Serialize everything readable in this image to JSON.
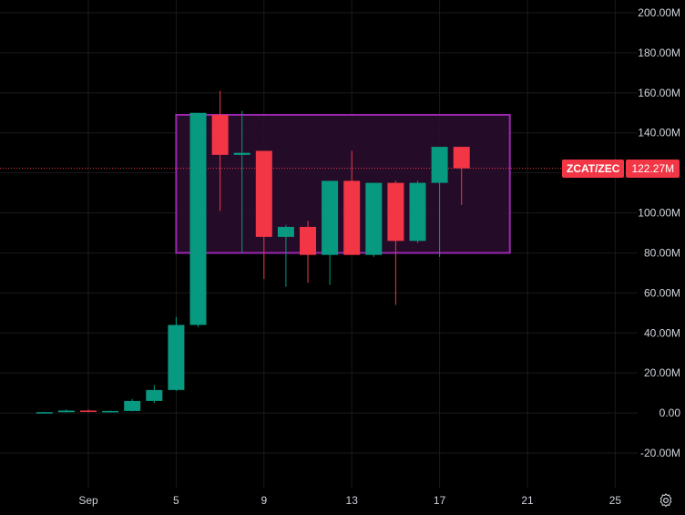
{
  "chart_data": {
    "type": "candlestick",
    "symbol": "ZCAT/ZEC",
    "last_price_label": "122.27M",
    "last_price": 122.27,
    "unit": "M",
    "ylim": [
      -28,
      204
    ],
    "y_ticks": [
      -20,
      0,
      20,
      40,
      60,
      80,
      100,
      120,
      140,
      160,
      180,
      200
    ],
    "y_tick_labels": [
      "-20.00M",
      "0.00",
      "20.00M",
      "40.00M",
      "60.00M",
      "80.00M",
      "100.00M",
      "120.00M",
      "140.00M",
      "160.00M",
      "180.00M",
      "200.00M"
    ],
    "x_ticks": [
      {
        "day": 1,
        "label": "Sep"
      },
      {
        "day": 5,
        "label": "5"
      },
      {
        "day": 9,
        "label": "9"
      },
      {
        "day": 13,
        "label": "13"
      },
      {
        "day": 17,
        "label": "17"
      },
      {
        "day": 21,
        "label": "21"
      },
      {
        "day": 25,
        "label": "25"
      }
    ],
    "candles": [
      {
        "day": -1,
        "open": 0.2,
        "high": 0.6,
        "low": 0.1,
        "close": 0.4
      },
      {
        "day": 0,
        "open": 0.4,
        "high": 1.8,
        "low": 0.2,
        "close": 1.2
      },
      {
        "day": 1,
        "open": 1.2,
        "high": 1.8,
        "low": 0.3,
        "close": 0.6
      },
      {
        "day": 2,
        "open": 0.6,
        "high": 1.2,
        "low": 0.3,
        "close": 1.0
      },
      {
        "day": 3,
        "open": 1.0,
        "high": 7.0,
        "low": 0.8,
        "close": 6.0
      },
      {
        "day": 4,
        "open": 6.0,
        "high": 14.0,
        "low": 5.0,
        "close": 11.5
      },
      {
        "day": 5,
        "open": 11.5,
        "high": 48.0,
        "low": 11.0,
        "close": 44.0
      },
      {
        "day": 6,
        "open": 44.0,
        "high": 150.0,
        "low": 43.0,
        "close": 150.0
      },
      {
        "day": 7,
        "open": 149.0,
        "high": 161.0,
        "low": 101.0,
        "close": 129.0
      },
      {
        "day": 8,
        "open": 129.0,
        "high": 151.0,
        "low": 80.0,
        "close": 130.0
      },
      {
        "day": 9,
        "open": 131.0,
        "high": 131.0,
        "low": 67.0,
        "close": 88.0
      },
      {
        "day": 10,
        "open": 88.0,
        "high": 94.0,
        "low": 63.0,
        "close": 93.0
      },
      {
        "day": 11,
        "open": 93.0,
        "high": 96.0,
        "low": 65.0,
        "close": 79.0
      },
      {
        "day": 12,
        "open": 79.0,
        "high": 116.0,
        "low": 64.0,
        "close": 116.0
      },
      {
        "day": 13,
        "open": 116.0,
        "high": 131.0,
        "low": 79.0,
        "close": 79.0
      },
      {
        "day": 14,
        "open": 79.0,
        "high": 115.0,
        "low": 78.0,
        "close": 115.0
      },
      {
        "day": 15,
        "open": 115.0,
        "high": 116.0,
        "low": 54.0,
        "close": 86.0
      },
      {
        "day": 16,
        "open": 86.0,
        "high": 116.0,
        "low": 85.0,
        "close": 115.0
      },
      {
        "day": 17,
        "open": 115.0,
        "high": 133.0,
        "low": 78.0,
        "close": 133.0
      },
      {
        "day": 18,
        "open": 133.0,
        "high": 133.0,
        "low": 104.0,
        "close": 122.27
      }
    ],
    "range_box": {
      "day_start": 5,
      "day_end": 20.2,
      "price_low": 80.0,
      "price_high": 149.0
    },
    "grid": true,
    "colors": {
      "up": "#089981",
      "down": "#f23645",
      "background": "#000000",
      "grid": "#1a1a1a",
      "box_border": "#9c27b0",
      "box_fill": "#2a0e2f",
      "price_line": "#f23645",
      "text": "#d1d4dc"
    }
  },
  "ui": {
    "settings_icon": "gear-icon"
  }
}
